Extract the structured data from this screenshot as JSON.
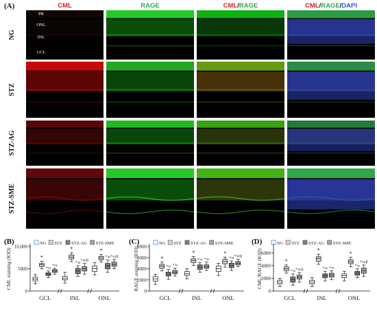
{
  "figure": {
    "panel_a": {
      "letter": "(A)",
      "column_headers": [
        {
          "parts": [
            {
              "text": "CML",
              "color": "#e31b23"
            }
          ]
        },
        {
          "parts": [
            {
              "text": "RAGE",
              "color": "#22b14c"
            }
          ]
        },
        {
          "parts": [
            {
              "text": "CML",
              "color": "#e31b23"
            },
            {
              "text": "/",
              "color": "#111111"
            },
            {
              "text": "RAGE",
              "color": "#22b14c"
            }
          ]
        },
        {
          "parts": [
            {
              "text": "CML",
              "color": "#e31b23"
            },
            {
              "text": "/",
              "color": "#111111"
            },
            {
              "text": "RAGE",
              "color": "#22b14c"
            },
            {
              "text": "/",
              "color": "#111111"
            },
            {
              "text": "DAPI",
              "color": "#2e5bd8"
            }
          ]
        }
      ],
      "row_labels": [
        "NG",
        "STZ",
        "STZ-AG",
        "STZ-SME"
      ],
      "layer_labels": [
        "PR",
        "ONL",
        "INL",
        "GCL"
      ],
      "rows": [
        {
          "red": 0.1,
          "green": 0.95,
          "blue": 0.85,
          "wavy": false
        },
        {
          "red": 0.9,
          "green": 0.85,
          "blue": 0.85,
          "wavy": false
        },
        {
          "red": 0.5,
          "green": 0.9,
          "blue": 0.6,
          "wavy": false
        },
        {
          "red": 0.55,
          "green": 0.95,
          "blue": 0.95,
          "wavy": true
        }
      ]
    },
    "legend_entries": [
      {
        "label": "NG",
        "color": "#ffffff"
      },
      {
        "label": "STZ",
        "color": "#d9d9d9"
      },
      {
        "label": "STZ-AG",
        "color": "#7f7f7f"
      },
      {
        "label": "STZ-SME",
        "color": "#a6a6a6"
      }
    ],
    "group_labels": [
      "GCL",
      "INL",
      "ONL"
    ]
  },
  "chart_data": [
    {
      "panel": "(B)",
      "type": "box",
      "ylabel": "CML staining (IOD)",
      "ylim": [
        0,
        10000
      ],
      "yticks": [
        0,
        5000,
        10000
      ],
      "ytick_labels": [
        "0",
        "5000",
        "10,000"
      ],
      "groups": [
        "GCL",
        "INL",
        "ONL"
      ],
      "series": [
        {
          "name": "NG",
          "boxes": [
            {
              "min": 1600,
              "q1": 2300,
              "median": 2700,
              "q3": 3100,
              "max": 3700
            },
            {
              "min": 1800,
              "q1": 2500,
              "median": 2900,
              "q3": 3300,
              "max": 4200
            },
            {
              "min": 3600,
              "q1": 4400,
              "median": 5000,
              "q3": 5600,
              "max": 6400
            }
          ]
        },
        {
          "name": "STZ",
          "boxes": [
            {
              "min": 5000,
              "q1": 5500,
              "median": 5900,
              "q3": 6200,
              "max": 6700
            },
            {
              "min": 6600,
              "q1": 7200,
              "median": 7600,
              "q3": 8100,
              "max": 8600
            },
            {
              "min": 6500,
              "q1": 7000,
              "median": 7400,
              "q3": 7800,
              "max": 8200
            }
          ]
        },
        {
          "name": "STZ-AG",
          "boxes": [
            {
              "min": 3000,
              "q1": 3500,
              "median": 3800,
              "q3": 4100,
              "max": 4500
            },
            {
              "min": 3300,
              "q1": 3900,
              "median": 4500,
              "q3": 5100,
              "max": 5700
            },
            {
              "min": 4200,
              "q1": 5000,
              "median": 5600,
              "q3": 6200,
              "max": 7000
            }
          ]
        },
        {
          "name": "STZ-SME",
          "boxes": [
            {
              "min": 3800,
              "q1": 4200,
              "median": 4500,
              "q3": 4800,
              "max": 5100
            },
            {
              "min": 3800,
              "q1": 4500,
              "median": 5000,
              "q3": 5500,
              "max": 6200
            },
            {
              "min": 5000,
              "q1": 5600,
              "median": 6000,
              "q3": 6500,
              "max": 7100
            }
          ]
        }
      ],
      "annotations": [
        [
          "",
          "*",
          "*/α",
          "*/α"
        ],
        [
          "",
          "*",
          "*/α",
          "*/α/β"
        ],
        [
          "",
          "*",
          "*/α",
          "*/α/β"
        ]
      ]
    },
    {
      "panel": "(C)",
      "type": "box",
      "ylabel": "RAGE staining (IOD)",
      "ylim": [
        0,
        8000
      ],
      "yticks": [
        0,
        2000,
        4000,
        6000,
        8000
      ],
      "ytick_labels": [
        "0",
        "2000",
        "4000",
        "6000",
        "8000"
      ],
      "groups": [
        "GCL",
        "INL",
        "ONL"
      ],
      "series": [
        {
          "name": "NG",
          "boxes": [
            {
              "min": 1200,
              "q1": 1800,
              "median": 2200,
              "q3": 2600,
              "max": 3000
            },
            {
              "min": 2200,
              "q1": 2800,
              "median": 3100,
              "q3": 3500,
              "max": 4000
            },
            {
              "min": 2800,
              "q1": 3500,
              "median": 4000,
              "q3": 4500,
              "max": 5000
            }
          ]
        },
        {
          "name": "STZ",
          "boxes": [
            {
              "min": 3600,
              "q1": 4100,
              "median": 4500,
              "q3": 4800,
              "max": 5200
            },
            {
              "min": 4600,
              "q1": 5100,
              "median": 5500,
              "q3": 5800,
              "max": 6200
            },
            {
              "min": 4300,
              "q1": 4900,
              "median": 5300,
              "q3": 5700,
              "max": 6100
            }
          ]
        },
        {
          "name": "STZ-AG",
          "boxes": [
            {
              "min": 2100,
              "q1": 2700,
              "median": 3000,
              "q3": 3400,
              "max": 3900
            },
            {
              "min": 3400,
              "q1": 3900,
              "median": 4300,
              "q3": 4700,
              "max": 5100
            },
            {
              "min": 3700,
              "q1": 4200,
              "median": 4600,
              "q3": 5000,
              "max": 5400
            }
          ]
        },
        {
          "name": "STZ-SME",
          "boxes": [
            {
              "min": 2700,
              "q1": 3100,
              "median": 3400,
              "q3": 3700,
              "max": 4100
            },
            {
              "min": 3700,
              "q1": 4100,
              "median": 4400,
              "q3": 4700,
              "max": 5200
            },
            {
              "min": 4400,
              "q1": 4700,
              "median": 5000,
              "q3": 5300,
              "max": 5700
            }
          ]
        }
      ],
      "annotations": [
        [
          "",
          "*",
          "*/α",
          "*/α"
        ],
        [
          "",
          "*",
          "*/α",
          "*/α"
        ],
        [
          "",
          "*",
          "*/α",
          "*/α/β"
        ]
      ]
    },
    {
      "panel": "(D)",
      "type": "box",
      "ylabel": "CML/RAGE (IOD)",
      "ylim": [
        0,
        7000
      ],
      "yticks": [
        0,
        2000,
        4000,
        6000
      ],
      "ytick_labels": [
        "0",
        "2000",
        "4000",
        "6000"
      ],
      "groups": [
        "GCL",
        "INL",
        "ONL"
      ],
      "series": [
        {
          "name": "NG",
          "boxes": [
            {
              "min": 700,
              "q1": 1100,
              "median": 1400,
              "q3": 1700,
              "max": 2000
            },
            {
              "min": 700,
              "q1": 1100,
              "median": 1400,
              "q3": 1700,
              "max": 2100
            },
            {
              "min": 1600,
              "q1": 2100,
              "median": 2400,
              "q3": 2700,
              "max": 3100
            }
          ]
        },
        {
          "name": "STZ",
          "boxes": [
            {
              "min": 2800,
              "q1": 3200,
              "median": 3500,
              "q3": 3800,
              "max": 4100
            },
            {
              "min": 4200,
              "q1": 4700,
              "median": 5100,
              "q3": 5400,
              "max": 5800
            },
            {
              "min": 3800,
              "q1": 4300,
              "median": 4600,
              "q3": 4900,
              "max": 5300
            }
          ]
        },
        {
          "name": "STZ-AG",
          "boxes": [
            {
              "min": 900,
              "q1": 1400,
              "median": 1800,
              "q3": 2200,
              "max": 2700
            },
            {
              "min": 1600,
              "q1": 2100,
              "median": 2400,
              "q3": 2700,
              "max": 3100
            },
            {
              "min": 2100,
              "q1": 2500,
              "median": 2800,
              "q3": 3100,
              "max": 3500
            }
          ]
        },
        {
          "name": "STZ-SME",
          "boxes": [
            {
              "min": 1400,
              "q1": 1900,
              "median": 2200,
              "q3": 2500,
              "max": 2900
            },
            {
              "min": 1800,
              "q1": 2200,
              "median": 2500,
              "q3": 2800,
              "max": 3200
            },
            {
              "min": 2300,
              "q1": 2800,
              "median": 3200,
              "q3": 3600,
              "max": 4100
            }
          ]
        }
      ],
      "annotations": [
        [
          "",
          "*",
          "*/α",
          "*/α/β"
        ],
        [
          "",
          "*",
          "*/α",
          "*/α"
        ],
        [
          "",
          "*",
          "*/α",
          "*/α/β"
        ]
      ]
    }
  ]
}
